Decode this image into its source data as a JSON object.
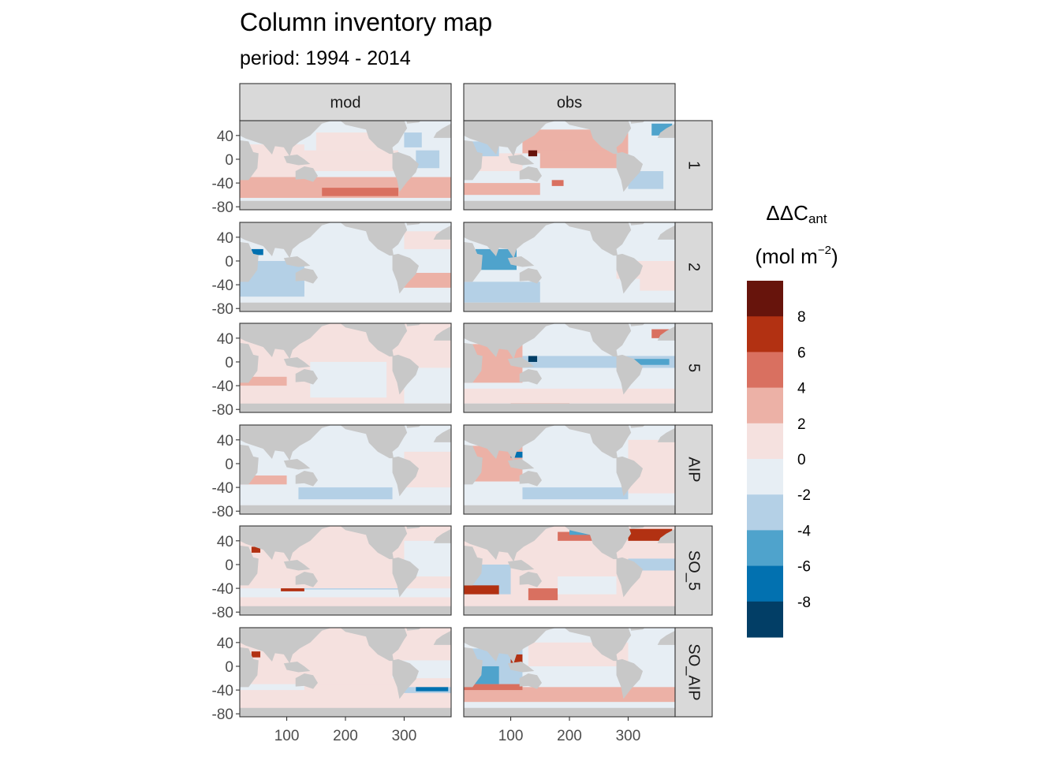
{
  "chart_data": {
    "type": "heatmap",
    "title": "Column inventory map",
    "subtitle": "period: 1994 - 2014",
    "facet_columns": [
      "mod",
      "obs"
    ],
    "facet_rows": [
      "1",
      "2",
      "5",
      "AIP",
      "SO_5",
      "SO_AIP"
    ],
    "x_ticks": [
      100,
      200,
      300
    ],
    "y_ticks": [
      40,
      0,
      -40,
      -80
    ],
    "xlim": [
      20,
      380
    ],
    "ylim": [
      -85,
      65
    ],
    "legend": {
      "title_main": "ΔΔC",
      "title_sub": "ant",
      "unit_main": "(mol m",
      "unit_sup": "−2",
      "unit_close": ")",
      "breaks": [
        "8",
        "6",
        "4",
        "2",
        "0",
        "-2",
        "-4",
        "-6",
        "-8"
      ],
      "colors": [
        "#67140c",
        "#b23112",
        "#d97060",
        "#ecb1a6",
        "#f5e1df",
        "#e7eef4",
        "#b4d0e6",
        "#4fa3cc",
        "#0271b0",
        "#023e66"
      ],
      "position": "right"
    },
    "land_color": "#c8c8c8",
    "panels": [
      {
        "column": "mod",
        "row": "1",
        "patches": [
          {
            "x0": 20,
            "x1": 380,
            "y0": -85,
            "y1": 65,
            "v": -1
          },
          {
            "x0": 20,
            "x1": 130,
            "y0": -30,
            "y1": 25,
            "v": 1.5
          },
          {
            "x0": 130,
            "x1": 290,
            "y0": -20,
            "y1": 15,
            "v": 1
          },
          {
            "x0": 150,
            "x1": 280,
            "y0": 15,
            "y1": 45,
            "v": 0.5
          },
          {
            "x0": 20,
            "x1": 380,
            "y0": -65,
            "y1": -30,
            "v": 2
          },
          {
            "x0": 20,
            "x1": 290,
            "y0": -55,
            "y1": -40,
            "v": 3.2
          },
          {
            "x0": 160,
            "x1": 290,
            "y0": -62,
            "y1": -48,
            "v": 4.5
          },
          {
            "x0": 320,
            "x1": 360,
            "y0": -15,
            "y1": 15,
            "v": -3
          },
          {
            "x0": 300,
            "x1": 330,
            "y0": 20,
            "y1": 45,
            "v": -2.5
          }
        ]
      },
      {
        "column": "obs",
        "row": "1",
        "patches": [
          {
            "x0": 20,
            "x1": 380,
            "y0": -85,
            "y1": 65,
            "v": -1
          },
          {
            "x0": 120,
            "x1": 300,
            "y0": 10,
            "y1": 50,
            "v": 2.5
          },
          {
            "x0": 150,
            "x1": 300,
            "y0": -15,
            "y1": 15,
            "v": 3
          },
          {
            "x0": 20,
            "x1": 120,
            "y0": -20,
            "y1": 10,
            "v": 1.5
          },
          {
            "x0": 20,
            "x1": 150,
            "y0": -60,
            "y1": -40,
            "v": 2.5
          },
          {
            "x0": 30,
            "x1": 80,
            "y0": 5,
            "y1": 30,
            "v": -3
          },
          {
            "x0": 300,
            "x1": 360,
            "y0": -50,
            "y1": -20,
            "v": -3
          },
          {
            "x0": 340,
            "x1": 375,
            "y0": 40,
            "y1": 60,
            "v": -6
          },
          {
            "x0": 130,
            "x1": 145,
            "y0": 5,
            "y1": 15,
            "v": 9
          },
          {
            "x0": 170,
            "x1": 190,
            "y0": -45,
            "y1": -35,
            "v": 5
          }
        ]
      },
      {
        "column": "mod",
        "row": "2",
        "patches": [
          {
            "x0": 20,
            "x1": 380,
            "y0": -85,
            "y1": 65,
            "v": -1
          },
          {
            "x0": 20,
            "x1": 130,
            "y0": -60,
            "y1": 0,
            "v": -3
          },
          {
            "x0": 20,
            "x1": 130,
            "y0": -55,
            "y1": -35,
            "v": -4
          },
          {
            "x0": 40,
            "x1": 60,
            "y0": 10,
            "y1": 20,
            "v": -7
          },
          {
            "x0": 290,
            "x1": 380,
            "y0": -45,
            "y1": -20,
            "v": 2
          },
          {
            "x0": 300,
            "x1": 380,
            "y0": 20,
            "y1": 50,
            "v": 1
          }
        ]
      },
      {
        "column": "obs",
        "row": "2",
        "patches": [
          {
            "x0": 20,
            "x1": 380,
            "y0": -85,
            "y1": 65,
            "v": -1
          },
          {
            "x0": 40,
            "x1": 110,
            "y0": -15,
            "y1": 20,
            "v": -5
          },
          {
            "x0": 20,
            "x1": 150,
            "y0": -70,
            "y1": -35,
            "v": -2.5
          },
          {
            "x0": 280,
            "x1": 380,
            "y0": -30,
            "y1": 0,
            "v": 1
          },
          {
            "x0": 320,
            "x1": 380,
            "y0": -50,
            "y1": -10,
            "v": 1.5
          }
        ]
      },
      {
        "column": "mod",
        "row": "5",
        "patches": [
          {
            "x0": 20,
            "x1": 380,
            "y0": -85,
            "y1": 65,
            "v": 1
          },
          {
            "x0": 140,
            "x1": 270,
            "y0": -60,
            "y1": 0,
            "v": -1
          },
          {
            "x0": 20,
            "x1": 100,
            "y0": -40,
            "y1": -25,
            "v": 3
          },
          {
            "x0": 300,
            "x1": 380,
            "y0": -70,
            "y1": -10,
            "v": -1
          }
        ]
      },
      {
        "column": "obs",
        "row": "5",
        "patches": [
          {
            "x0": 20,
            "x1": 380,
            "y0": -85,
            "y1": 65,
            "v": -1
          },
          {
            "x0": 20,
            "x1": 120,
            "y0": -35,
            "y1": 30,
            "v": 2.5
          },
          {
            "x0": 120,
            "x1": 380,
            "y0": -10,
            "y1": 10,
            "v": -3
          },
          {
            "x0": 300,
            "x1": 370,
            "y0": -5,
            "y1": 5,
            "v": -5
          },
          {
            "x0": 130,
            "x1": 145,
            "y0": 0,
            "y1": 10,
            "v": -9
          },
          {
            "x0": 340,
            "x1": 370,
            "y0": 40,
            "y1": 55,
            "v": 5
          },
          {
            "x0": 20,
            "x1": 380,
            "y0": -70,
            "y1": -45,
            "v": 1.5
          },
          {
            "x0": 100,
            "x1": 200,
            "y0": -80,
            "y1": -70,
            "v": 5
          }
        ]
      },
      {
        "column": "mod",
        "row": "AIP",
        "patches": [
          {
            "x0": 20,
            "x1": 380,
            "y0": -85,
            "y1": 65,
            "v": -1
          },
          {
            "x0": 20,
            "x1": 100,
            "y0": -35,
            "y1": -20,
            "v": 3
          },
          {
            "x0": 120,
            "x1": 280,
            "y0": -60,
            "y1": -40,
            "v": -2.5
          },
          {
            "x0": 300,
            "x1": 380,
            "y0": -40,
            "y1": 20,
            "v": 1
          }
        ]
      },
      {
        "column": "obs",
        "row": "AIP",
        "patches": [
          {
            "x0": 20,
            "x1": 380,
            "y0": -85,
            "y1": 65,
            "v": -1
          },
          {
            "x0": 20,
            "x1": 120,
            "y0": -30,
            "y1": 30,
            "v": 2.5
          },
          {
            "x0": 120,
            "x1": 300,
            "y0": -60,
            "y1": -40,
            "v": -2.5
          },
          {
            "x0": 20,
            "x1": 120,
            "y0": -60,
            "y1": -45,
            "v": -1.5
          },
          {
            "x0": 300,
            "x1": 380,
            "y0": -50,
            "y1": 40,
            "v": 1
          },
          {
            "x0": 100,
            "x1": 120,
            "y0": 10,
            "y1": 20,
            "v": -7
          }
        ]
      },
      {
        "column": "mod",
        "row": "SO_5",
        "patches": [
          {
            "x0": 20,
            "x1": 380,
            "y0": -85,
            "y1": 65,
            "v": 1
          },
          {
            "x0": 300,
            "x1": 380,
            "y0": -20,
            "y1": 40,
            "v": -1.5
          },
          {
            "x0": 20,
            "x1": 380,
            "y0": -55,
            "y1": -40,
            "v": -1
          },
          {
            "x0": 90,
            "x1": 130,
            "y0": -45,
            "y1": -40,
            "v": 7
          },
          {
            "x0": 130,
            "x1": 300,
            "y0": -42,
            "y1": -40,
            "v": -4
          },
          {
            "x0": 40,
            "x1": 55,
            "y0": 20,
            "y1": 30,
            "v": 7
          }
        ]
      },
      {
        "column": "obs",
        "row": "SO_5",
        "patches": [
          {
            "x0": 20,
            "x1": 380,
            "y0": -85,
            "y1": 65,
            "v": 1.5
          },
          {
            "x0": 20,
            "x1": 100,
            "y0": -50,
            "y1": 0,
            "v": -3
          },
          {
            "x0": 20,
            "x1": 80,
            "y0": -50,
            "y1": -35,
            "v": 7
          },
          {
            "x0": 130,
            "x1": 180,
            "y0": -60,
            "y1": -40,
            "v": 5
          },
          {
            "x0": 180,
            "x1": 280,
            "y0": -50,
            "y1": -20,
            "v": -2
          },
          {
            "x0": 180,
            "x1": 260,
            "y0": 40,
            "y1": 55,
            "v": 4
          },
          {
            "x0": 200,
            "x1": 250,
            "y0": 50,
            "y1": 58,
            "v": -5
          },
          {
            "x0": 300,
            "x1": 375,
            "y0": 40,
            "y1": 60,
            "v": 7
          },
          {
            "x0": 300,
            "x1": 380,
            "y0": -10,
            "y1": 10,
            "v": -3
          }
        ]
      },
      {
        "column": "mod",
        "row": "SO_AIP",
        "patches": [
          {
            "x0": 20,
            "x1": 380,
            "y0": -85,
            "y1": 65,
            "v": 1
          },
          {
            "x0": 20,
            "x1": 130,
            "y0": -40,
            "y1": -30,
            "v": -2
          },
          {
            "x0": 130,
            "x1": 280,
            "y0": -70,
            "y1": -30,
            "v": 1.5
          },
          {
            "x0": 300,
            "x1": 380,
            "y0": -45,
            "y1": -35,
            "v": -3
          },
          {
            "x0": 320,
            "x1": 375,
            "y0": -42,
            "y1": -35,
            "v": -7
          },
          {
            "x0": 40,
            "x1": 55,
            "y0": 15,
            "y1": 25,
            "v": 7
          },
          {
            "x0": 280,
            "x1": 380,
            "y0": -20,
            "y1": 10,
            "v": -1
          }
        ]
      },
      {
        "column": "obs",
        "row": "SO_AIP",
        "patches": [
          {
            "x0": 20,
            "x1": 380,
            "y0": -85,
            "y1": 65,
            "v": -1
          },
          {
            "x0": 20,
            "x1": 120,
            "y0": -50,
            "y1": 30,
            "v": -3
          },
          {
            "x0": 30,
            "x1": 80,
            "y0": -30,
            "y1": 0,
            "v": -5
          },
          {
            "x0": 20,
            "x1": 380,
            "y0": -60,
            "y1": -35,
            "v": 2
          },
          {
            "x0": 20,
            "x1": 120,
            "y0": -40,
            "y1": -30,
            "v": 5
          },
          {
            "x0": 130,
            "x1": 300,
            "y0": 0,
            "y1": 40,
            "v": 1
          },
          {
            "x0": 100,
            "x1": 120,
            "y0": 5,
            "y1": 20,
            "v": 6
          }
        ]
      }
    ]
  }
}
